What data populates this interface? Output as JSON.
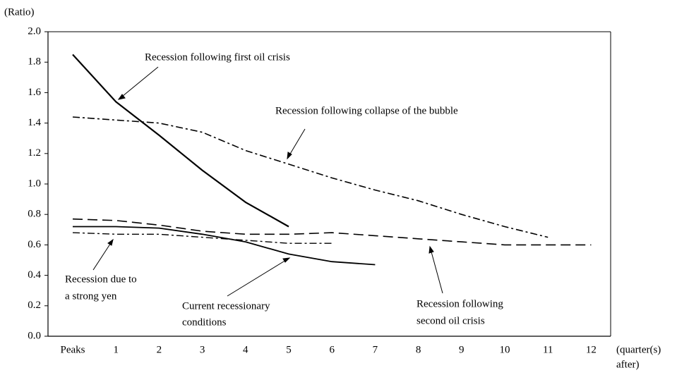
{
  "chart_data": {
    "type": "line",
    "y_label": "(Ratio)",
    "x_label": [
      "(quarter(s)",
      "after)"
    ],
    "categories": [
      "Peaks",
      "1",
      "2",
      "3",
      "4",
      "5",
      "6",
      "7",
      "8",
      "9",
      "10",
      "11",
      "12"
    ],
    "ylim": [
      0,
      2
    ],
    "yticks": [
      {
        "value": 0,
        "label": "0.0"
      },
      0.2,
      0.4,
      0.6,
      0.8,
      {
        "value": 1,
        "label": "1.0"
      },
      1.2,
      1.4,
      1.6,
      1.8,
      {
        "value": 2,
        "label": "2.0"
      }
    ],
    "series": [
      {
        "label": [
          "Recession following first oil crisis"
        ],
        "color": "#000000",
        "style": "solid",
        "width": 2.2,
        "values": [
          1.85,
          1.54,
          1.32,
          1.09,
          0.88,
          0.72,
          null,
          null,
          null,
          null,
          null,
          null,
          null
        ]
      },
      {
        "label": [
          "Recession following collapse of the bubble"
        ],
        "color": "#000000",
        "style": "dashdot",
        "width": 1.6,
        "values": [
          1.44,
          1.42,
          1.4,
          1.34,
          1.22,
          1.13,
          1.04,
          0.96,
          0.89,
          0.8,
          0.72,
          0.65,
          null
        ]
      },
      {
        "label": [
          "Recession following",
          "second oil crisis"
        ],
        "color": "#000000",
        "style": "dashed",
        "width": 1.6,
        "values": [
          0.77,
          0.76,
          0.73,
          0.69,
          0.67,
          0.67,
          0.68,
          0.66,
          0.64,
          0.62,
          0.6,
          0.6,
          0.6
        ]
      },
      {
        "label": [
          "Recession due to",
          "a strong yen"
        ],
        "color": "#000000",
        "style": "dashdot",
        "width": 1.4,
        "values": [
          0.68,
          0.67,
          0.67,
          0.65,
          0.63,
          0.61,
          0.61,
          null,
          null,
          null,
          null,
          null,
          null
        ]
      },
      {
        "label": [
          "Current recessionary",
          "conditions"
        ],
        "color": "#000000",
        "style": "solid",
        "width": 1.8,
        "values": [
          0.72,
          0.72,
          0.71,
          0.67,
          0.62,
          0.54,
          0.49,
          0.47,
          null,
          null,
          null,
          null,
          null
        ]
      }
    ]
  }
}
